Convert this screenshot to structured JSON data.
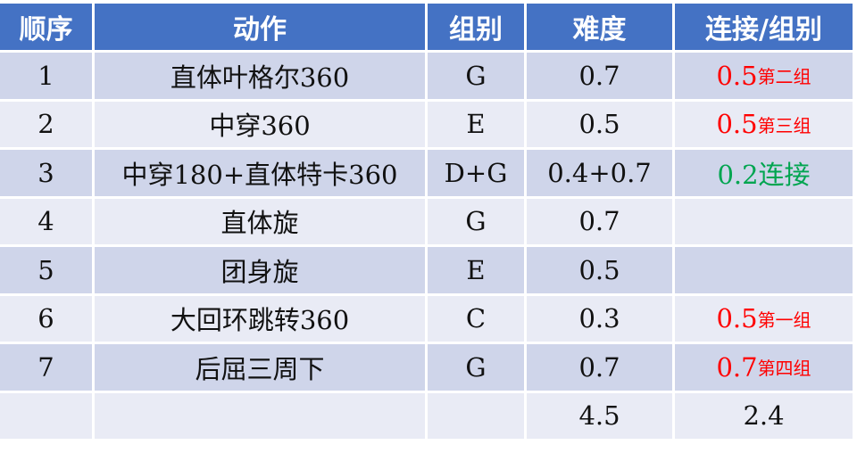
{
  "colors": {
    "header": "#4472C4",
    "row_dark": "#CFD5EA",
    "row_light": "#E9EBF5",
    "red": "#FF0000",
    "green": "#00A550"
  },
  "headers": [
    "顺序",
    "动作",
    "组别",
    "难度",
    "连接/组别"
  ],
  "rows": [
    {
      "order": "1",
      "move": "直体叶格尔360",
      "group": "G",
      "difficulty": "0.7",
      "bonus": "0.5",
      "bonus_note": "第二组",
      "bonus_color": "red"
    },
    {
      "order": "2",
      "move": "中穿360",
      "group": "E",
      "difficulty": "0.5",
      "bonus": "0.5",
      "bonus_note": "第三组",
      "bonus_color": "red"
    },
    {
      "order": "3",
      "move": "中穿180+直体特卡360",
      "group": "D+G",
      "difficulty": "0.4+0.7",
      "bonus": "0.2连接",
      "bonus_note": "",
      "bonus_color": "green"
    },
    {
      "order": "4",
      "move": "直体旋",
      "group": "G",
      "difficulty": "0.7",
      "bonus": "",
      "bonus_note": "",
      "bonus_color": ""
    },
    {
      "order": "5",
      "move": "团身旋",
      "group": "E",
      "difficulty": "0.5",
      "bonus": "",
      "bonus_note": "",
      "bonus_color": ""
    },
    {
      "order": "6",
      "move": "大回环跳转360",
      "group": "C",
      "difficulty": "0.3",
      "bonus": "0.5",
      "bonus_note": "第一组",
      "bonus_color": "red"
    },
    {
      "order": "7",
      "move": "后屈三周下",
      "group": "G",
      "difficulty": "0.7",
      "bonus": "0.7",
      "bonus_note": "第四组",
      "bonus_color": "red"
    }
  ],
  "totals": {
    "order": "",
    "move": "",
    "group": "",
    "difficulty": "4.5",
    "bonus": "2.4"
  }
}
